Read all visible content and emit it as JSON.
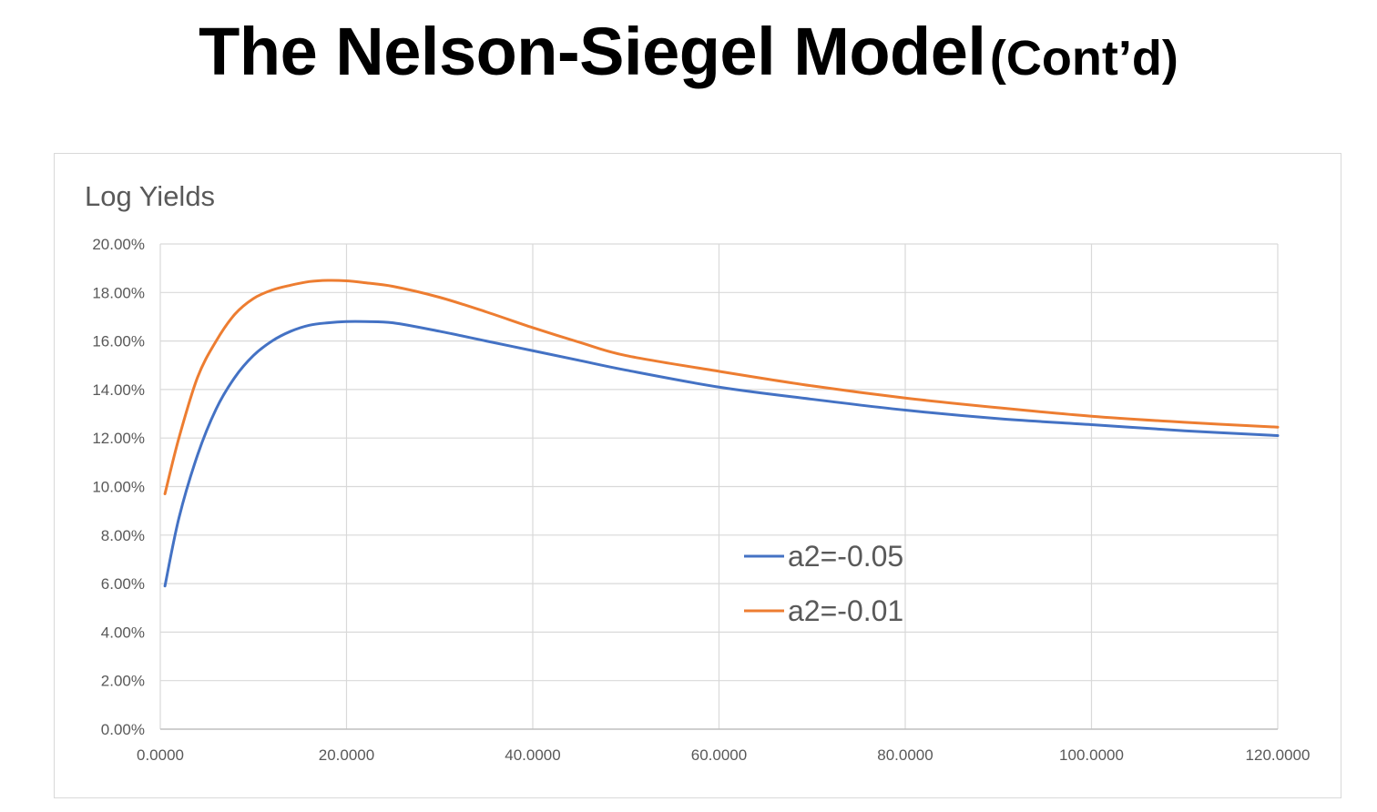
{
  "page": {
    "title_main": "The Nelson-Siegel Model",
    "title_sub": "(Cont’d)"
  },
  "chart_data": {
    "type": "line",
    "title": "Log Yields",
    "xlabel": "",
    "ylabel": "",
    "xlim": [
      0,
      120
    ],
    "ylim": [
      0,
      0.2
    ],
    "x_ticks": [
      "0.0000",
      "20.0000",
      "40.0000",
      "60.0000",
      "80.0000",
      "100.0000",
      "120.0000"
    ],
    "y_ticks": [
      "0.00%",
      "2.00%",
      "4.00%",
      "6.00%",
      "8.00%",
      "10.00%",
      "12.00%",
      "14.00%",
      "16.00%",
      "18.00%",
      "20.00%"
    ],
    "grid": true,
    "legend_position": "center-right",
    "x": [
      0.5,
      2,
      4,
      6,
      8,
      10,
      12,
      14,
      16,
      18,
      20,
      22,
      25,
      30,
      35,
      40,
      45,
      50,
      60,
      70,
      80,
      90,
      100,
      110,
      120
    ],
    "series": [
      {
        "name": "a2=-0.05",
        "color": "#4472c4",
        "values": [
          0.059,
          0.087,
          0.113,
          0.132,
          0.145,
          0.154,
          0.16,
          0.164,
          0.1665,
          0.1675,
          0.168,
          0.168,
          0.1675,
          0.164,
          0.16,
          0.156,
          0.152,
          0.148,
          0.141,
          0.136,
          0.1315,
          0.128,
          0.1255,
          0.123,
          0.121
        ]
      },
      {
        "name": "a2=-0.01",
        "color": "#ed7d31",
        "values": [
          0.097,
          0.12,
          0.145,
          0.16,
          0.171,
          0.1775,
          0.181,
          0.183,
          0.1845,
          0.185,
          0.1848,
          0.184,
          0.1825,
          0.178,
          0.172,
          0.1655,
          0.1595,
          0.154,
          0.1475,
          0.1415,
          0.1365,
          0.1325,
          0.129,
          0.1265,
          0.1245
        ]
      }
    ]
  }
}
